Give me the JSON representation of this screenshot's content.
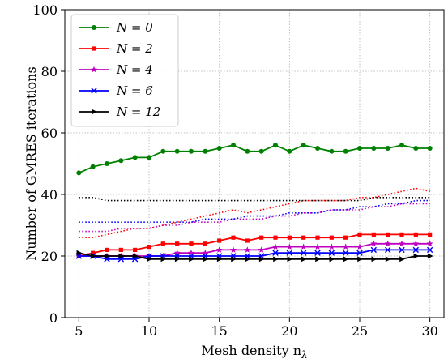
{
  "chart_data": {
    "type": "line",
    "xlabel": "Mesh density n",
    "xlabel_subscript": "λ",
    "ylabel": "Number of GMRES iterations",
    "xlim": [
      4,
      31
    ],
    "ylim": [
      0,
      100
    ],
    "xticks": [
      5,
      10,
      15,
      20,
      25,
      30
    ],
    "yticks": [
      0,
      20,
      40,
      60,
      80,
      100
    ],
    "grid": true,
    "legend_position": "top-left",
    "x": [
      5,
      6,
      7,
      8,
      9,
      10,
      11,
      12,
      13,
      14,
      15,
      16,
      17,
      18,
      19,
      20,
      21,
      22,
      23,
      24,
      25,
      26,
      27,
      28,
      29,
      30
    ],
    "series": [
      {
        "name": "N = 0",
        "color": "#008000",
        "marker": "circle",
        "values": [
          47,
          49,
          50,
          51,
          52,
          52,
          54,
          54,
          54,
          54,
          55,
          56,
          54,
          54,
          56,
          54,
          56,
          55,
          54,
          54,
          55,
          55,
          55,
          56,
          55,
          55
        ]
      },
      {
        "name": "N = 2",
        "color": "#ff0000",
        "marker": "square",
        "values": [
          20,
          21,
          22,
          22,
          22,
          23,
          24,
          24,
          24,
          24,
          25,
          26,
          25,
          26,
          26,
          26,
          26,
          26,
          26,
          26,
          27,
          27,
          27,
          27,
          27,
          27
        ]
      },
      {
        "name": "N = 4",
        "color": "#bf00bf",
        "marker": "star",
        "values": [
          20,
          20,
          20,
          20,
          20,
          20,
          20,
          21,
          21,
          21,
          22,
          22,
          22,
          22,
          23,
          23,
          23,
          23,
          23,
          23,
          23,
          24,
          24,
          24,
          24,
          24
        ]
      },
      {
        "name": "N = 6",
        "color": "#0000ff",
        "marker": "x",
        "values": [
          20,
          20,
          19,
          19,
          19,
          20,
          20,
          20,
          20,
          20,
          20,
          20,
          20,
          20,
          21,
          21,
          21,
          21,
          21,
          21,
          21,
          22,
          22,
          22,
          22,
          22
        ]
      },
      {
        "name": "N = 12",
        "color": "#000000",
        "marker": "triangle-right",
        "values": [
          21,
          20,
          20,
          20,
          20,
          19,
          19,
          19,
          19,
          19,
          19,
          19,
          19,
          19,
          19,
          19,
          19,
          19,
          19,
          19,
          19,
          19,
          19,
          19,
          20,
          20
        ]
      }
    ],
    "dotted_series": [
      {
        "color": "#ff0000",
        "values": [
          26,
          26,
          27,
          28,
          29,
          29,
          30,
          31,
          32,
          33,
          34,
          35,
          34,
          35,
          36,
          37,
          38,
          38,
          38,
          38,
          39,
          39,
          40,
          41,
          42,
          41
        ]
      },
      {
        "color": "#bf00bf",
        "values": [
          28,
          28,
          28,
          29,
          29,
          29,
          30,
          30,
          31,
          31,
          31,
          32,
          32,
          32,
          33,
          33,
          34,
          34,
          35,
          35,
          35,
          36,
          36,
          37,
          37,
          37
        ]
      },
      {
        "color": "#0000ff",
        "values": [
          31,
          31,
          31,
          31,
          31,
          31,
          31,
          31,
          31,
          32,
          32,
          32,
          33,
          33,
          33,
          34,
          34,
          34,
          35,
          35,
          36,
          36,
          37,
          37,
          38,
          38
        ]
      },
      {
        "color": "#000000",
        "values": [
          39,
          39,
          38,
          38,
          38,
          38,
          38,
          38,
          38,
          38,
          38,
          38,
          38,
          38,
          38,
          38,
          38,
          38,
          38,
          38,
          38,
          39,
          39,
          39,
          39,
          39
        ]
      }
    ]
  }
}
